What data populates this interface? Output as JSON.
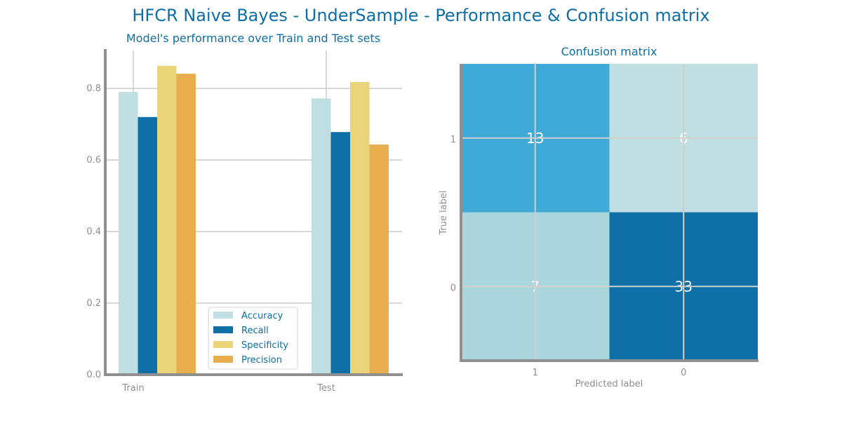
{
  "title": "HFCR Naive Bayes - UnderSample - Performance & Confusion matrix",
  "colors": {
    "title": "#0e6ea5",
    "axis": "#8f8f8f",
    "grid": "#cccccc",
    "accuracy": "#bfdfe3",
    "recall": "#0e70a6",
    "specificity": "#e9d47a",
    "precision": "#e8ae4e",
    "cm_high": "#0e70a6",
    "cm_mid": "#3fa9d8",
    "cm_low": "#aad6de",
    "cm_lowest": "#c0dfe2"
  },
  "chart_data": [
    {
      "type": "bar",
      "title": "Model's performance over Train and Test sets",
      "categories": [
        "Train",
        "Test"
      ],
      "series": [
        {
          "name": "Accuracy",
          "values": [
            0.79,
            0.772
          ]
        },
        {
          "name": "Recall",
          "values": [
            0.72,
            0.678
          ]
        },
        {
          "name": "Specificity",
          "values": [
            0.863,
            0.818
          ]
        },
        {
          "name": "Precision",
          "values": [
            0.841,
            0.643
          ]
        }
      ],
      "yticks": [
        "0.0",
        "0.2",
        "0.4",
        "0.6",
        "0.8"
      ],
      "ylim": [
        0,
        0.9
      ],
      "grid": true,
      "legend": "bottom-center"
    },
    {
      "type": "heatmap",
      "title": "Confusion matrix",
      "xlabel": "Predicted label",
      "ylabel": "True label",
      "x_categories": [
        "1",
        "0"
      ],
      "y_categories": [
        "1",
        "0"
      ],
      "values": [
        [
          13,
          6
        ],
        [
          7,
          33
        ]
      ]
    }
  ]
}
